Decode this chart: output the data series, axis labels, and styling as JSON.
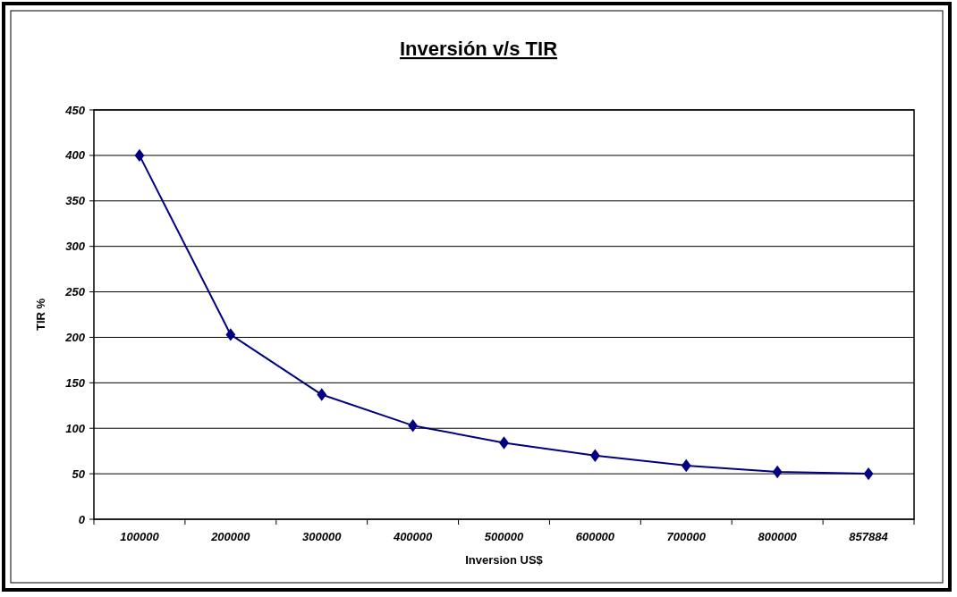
{
  "chart_data": {
    "type": "line",
    "title": "Inversión v/s TIR",
    "xlabel": "Inversion US$",
    "ylabel": "TIR %",
    "categories": [
      "100000",
      "200000",
      "300000",
      "400000",
      "500000",
      "600000",
      "700000",
      "800000",
      "857884"
    ],
    "series": [
      {
        "color": "#000080",
        "values": [
          400,
          203,
          137,
          103,
          84,
          70,
          59,
          52,
          50
        ]
      }
    ],
    "ylim": [
      0,
      450
    ],
    "yticks": [
      0,
      50,
      100,
      150,
      200,
      250,
      300,
      350,
      400,
      450
    ],
    "grid": "y",
    "marker": "diamond",
    "line_style": "solid"
  }
}
